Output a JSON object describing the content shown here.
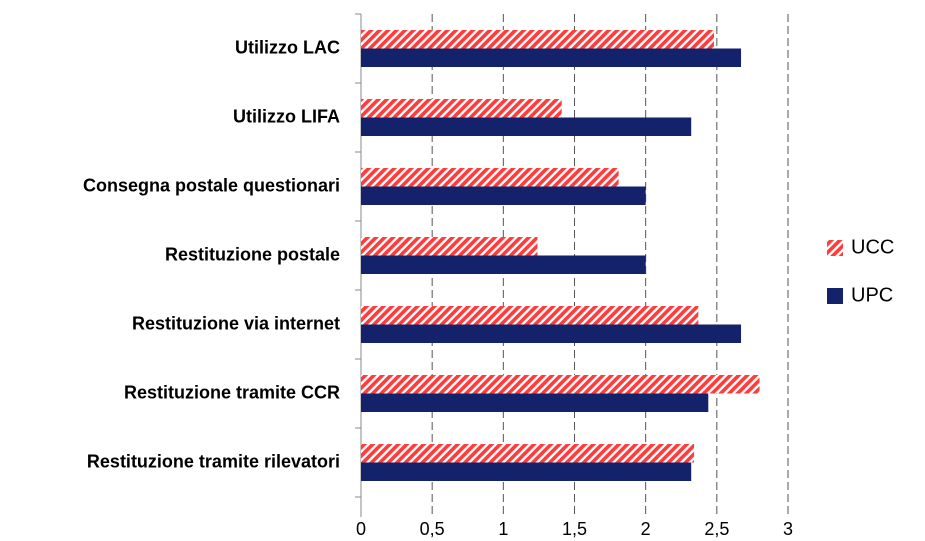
{
  "chart_data": {
    "type": "barh",
    "categories": [
      "Utilizzo LAC",
      "Utilizzo LIFA",
      "Consegna postale questionari",
      "Restituzione postale",
      "Restituzione via internet",
      "Restituzione tramite CCR",
      "Restituzione tramite rilevatori"
    ],
    "series": [
      {
        "name": "UCC",
        "color": "#ff3b3b",
        "hatch": true,
        "values": [
          2.48,
          1.41,
          1.81,
          1.24,
          2.37,
          2.8,
          2.34
        ]
      },
      {
        "name": "UPC",
        "color": "#14216b",
        "hatch": false,
        "values": [
          2.67,
          2.32,
          2.0,
          2.0,
          2.67,
          2.44,
          2.32
        ]
      }
    ],
    "xlim": [
      0,
      3
    ],
    "xticks": [
      0,
      {
        "value": 0.5,
        "label": "0,5"
      },
      1,
      {
        "value": 1.5,
        "label": "1,5"
      },
      2,
      {
        "value": 2.5,
        "label": "2,5"
      },
      3
    ],
    "grid": true,
    "legend": "right"
  }
}
